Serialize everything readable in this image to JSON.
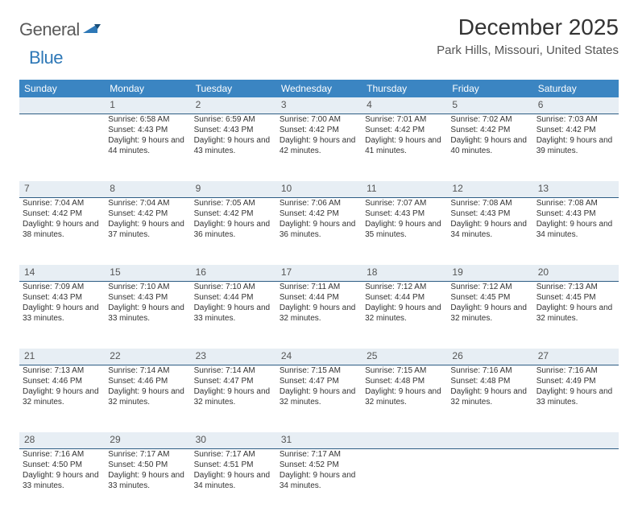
{
  "logo": {
    "general": "General",
    "blue": "Blue"
  },
  "title": "December 2025",
  "location": "Park Hills, Missouri, United States",
  "colors": {
    "header_bg": "#3b85c2",
    "header_fg": "#ffffff",
    "daynum_bg": "#e7eef4",
    "daynum_border": "#2e5d84",
    "body_bg": "#ffffff",
    "text": "#333333",
    "logo_gray": "#5a5a5a",
    "logo_blue": "#2e78b7"
  },
  "day_headers": [
    "Sunday",
    "Monday",
    "Tuesday",
    "Wednesday",
    "Thursday",
    "Friday",
    "Saturday"
  ],
  "weeks": [
    {
      "nums": [
        "",
        "1",
        "2",
        "3",
        "4",
        "5",
        "6"
      ],
      "cells": [
        null,
        {
          "sr": "Sunrise: 6:58 AM",
          "ss": "Sunset: 4:43 PM",
          "dl": "Daylight: 9 hours and 44 minutes."
        },
        {
          "sr": "Sunrise: 6:59 AM",
          "ss": "Sunset: 4:43 PM",
          "dl": "Daylight: 9 hours and 43 minutes."
        },
        {
          "sr": "Sunrise: 7:00 AM",
          "ss": "Sunset: 4:42 PM",
          "dl": "Daylight: 9 hours and 42 minutes."
        },
        {
          "sr": "Sunrise: 7:01 AM",
          "ss": "Sunset: 4:42 PM",
          "dl": "Daylight: 9 hours and 41 minutes."
        },
        {
          "sr": "Sunrise: 7:02 AM",
          "ss": "Sunset: 4:42 PM",
          "dl": "Daylight: 9 hours and 40 minutes."
        },
        {
          "sr": "Sunrise: 7:03 AM",
          "ss": "Sunset: 4:42 PM",
          "dl": "Daylight: 9 hours and 39 minutes."
        }
      ]
    },
    {
      "nums": [
        "7",
        "8",
        "9",
        "10",
        "11",
        "12",
        "13"
      ],
      "cells": [
        {
          "sr": "Sunrise: 7:04 AM",
          "ss": "Sunset: 4:42 PM",
          "dl": "Daylight: 9 hours and 38 minutes."
        },
        {
          "sr": "Sunrise: 7:04 AM",
          "ss": "Sunset: 4:42 PM",
          "dl": "Daylight: 9 hours and 37 minutes."
        },
        {
          "sr": "Sunrise: 7:05 AM",
          "ss": "Sunset: 4:42 PM",
          "dl": "Daylight: 9 hours and 36 minutes."
        },
        {
          "sr": "Sunrise: 7:06 AM",
          "ss": "Sunset: 4:42 PM",
          "dl": "Daylight: 9 hours and 36 minutes."
        },
        {
          "sr": "Sunrise: 7:07 AM",
          "ss": "Sunset: 4:43 PM",
          "dl": "Daylight: 9 hours and 35 minutes."
        },
        {
          "sr": "Sunrise: 7:08 AM",
          "ss": "Sunset: 4:43 PM",
          "dl": "Daylight: 9 hours and 34 minutes."
        },
        {
          "sr": "Sunrise: 7:08 AM",
          "ss": "Sunset: 4:43 PM",
          "dl": "Daylight: 9 hours and 34 minutes."
        }
      ]
    },
    {
      "nums": [
        "14",
        "15",
        "16",
        "17",
        "18",
        "19",
        "20"
      ],
      "cells": [
        {
          "sr": "Sunrise: 7:09 AM",
          "ss": "Sunset: 4:43 PM",
          "dl": "Daylight: 9 hours and 33 minutes."
        },
        {
          "sr": "Sunrise: 7:10 AM",
          "ss": "Sunset: 4:43 PM",
          "dl": "Daylight: 9 hours and 33 minutes."
        },
        {
          "sr": "Sunrise: 7:10 AM",
          "ss": "Sunset: 4:44 PM",
          "dl": "Daylight: 9 hours and 33 minutes."
        },
        {
          "sr": "Sunrise: 7:11 AM",
          "ss": "Sunset: 4:44 PM",
          "dl": "Daylight: 9 hours and 32 minutes."
        },
        {
          "sr": "Sunrise: 7:12 AM",
          "ss": "Sunset: 4:44 PM",
          "dl": "Daylight: 9 hours and 32 minutes."
        },
        {
          "sr": "Sunrise: 7:12 AM",
          "ss": "Sunset: 4:45 PM",
          "dl": "Daylight: 9 hours and 32 minutes."
        },
        {
          "sr": "Sunrise: 7:13 AM",
          "ss": "Sunset: 4:45 PM",
          "dl": "Daylight: 9 hours and 32 minutes."
        }
      ]
    },
    {
      "nums": [
        "21",
        "22",
        "23",
        "24",
        "25",
        "26",
        "27"
      ],
      "cells": [
        {
          "sr": "Sunrise: 7:13 AM",
          "ss": "Sunset: 4:46 PM",
          "dl": "Daylight: 9 hours and 32 minutes."
        },
        {
          "sr": "Sunrise: 7:14 AM",
          "ss": "Sunset: 4:46 PM",
          "dl": "Daylight: 9 hours and 32 minutes."
        },
        {
          "sr": "Sunrise: 7:14 AM",
          "ss": "Sunset: 4:47 PM",
          "dl": "Daylight: 9 hours and 32 minutes."
        },
        {
          "sr": "Sunrise: 7:15 AM",
          "ss": "Sunset: 4:47 PM",
          "dl": "Daylight: 9 hours and 32 minutes."
        },
        {
          "sr": "Sunrise: 7:15 AM",
          "ss": "Sunset: 4:48 PM",
          "dl": "Daylight: 9 hours and 32 minutes."
        },
        {
          "sr": "Sunrise: 7:16 AM",
          "ss": "Sunset: 4:48 PM",
          "dl": "Daylight: 9 hours and 32 minutes."
        },
        {
          "sr": "Sunrise: 7:16 AM",
          "ss": "Sunset: 4:49 PM",
          "dl": "Daylight: 9 hours and 33 minutes."
        }
      ]
    },
    {
      "nums": [
        "28",
        "29",
        "30",
        "31",
        "",
        "",
        ""
      ],
      "cells": [
        {
          "sr": "Sunrise: 7:16 AM",
          "ss": "Sunset: 4:50 PM",
          "dl": "Daylight: 9 hours and 33 minutes."
        },
        {
          "sr": "Sunrise: 7:17 AM",
          "ss": "Sunset: 4:50 PM",
          "dl": "Daylight: 9 hours and 33 minutes."
        },
        {
          "sr": "Sunrise: 7:17 AM",
          "ss": "Sunset: 4:51 PM",
          "dl": "Daylight: 9 hours and 34 minutes."
        },
        {
          "sr": "Sunrise: 7:17 AM",
          "ss": "Sunset: 4:52 PM",
          "dl": "Daylight: 9 hours and 34 minutes."
        },
        null,
        null,
        null
      ]
    }
  ]
}
